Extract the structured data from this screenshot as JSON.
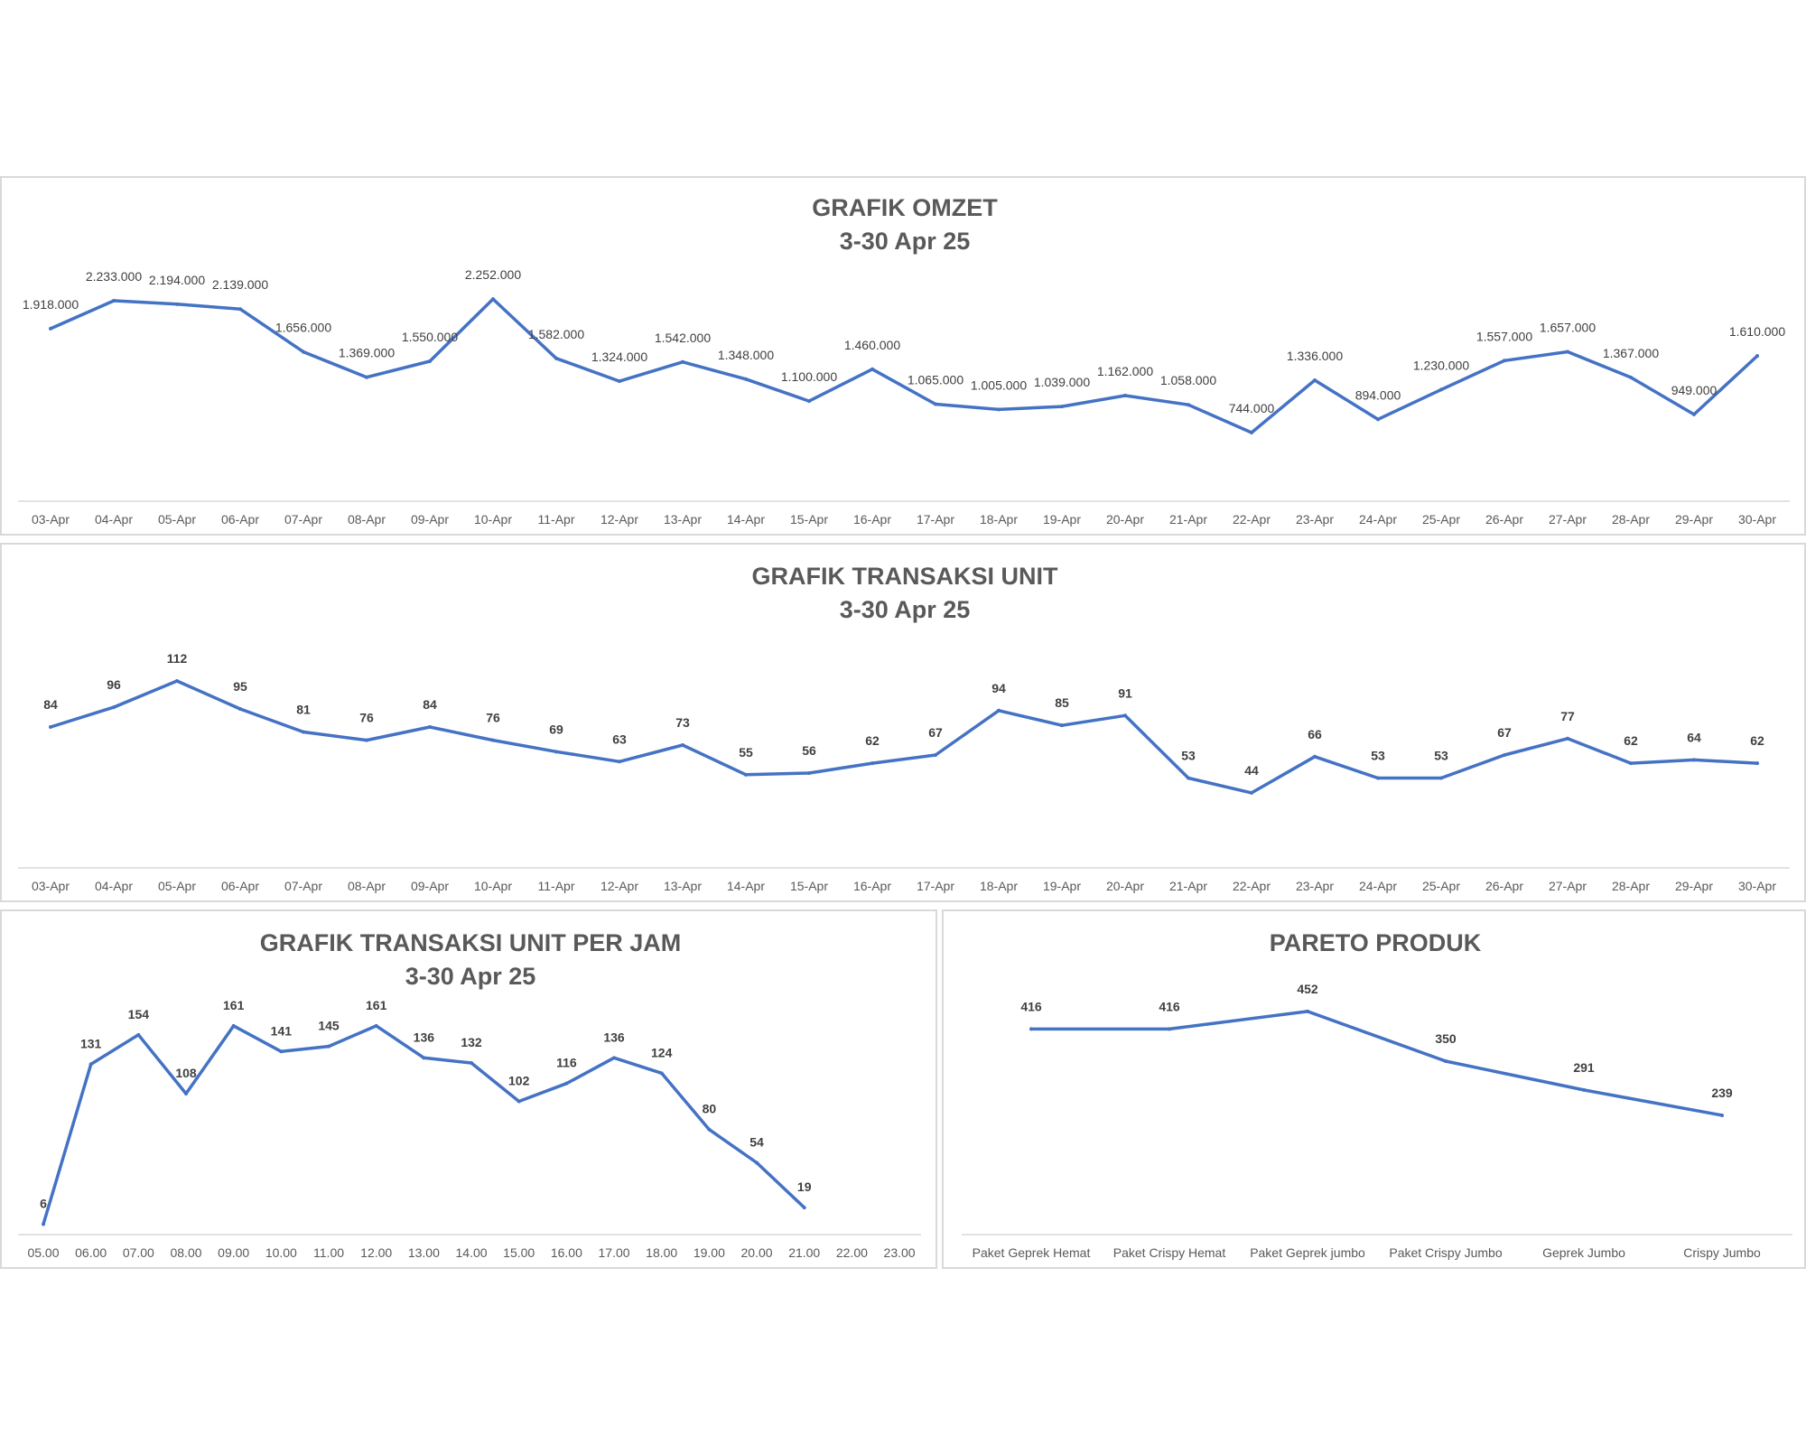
{
  "chart_data": [
    {
      "id": "omzet",
      "type": "line",
      "title": "GRAFIK OMZET",
      "subtitle": "3-30 Apr 25",
      "color": "#4472c4",
      "label_style": "normal",
      "categories": [
        "03-Apr",
        "04-Apr",
        "05-Apr",
        "06-Apr",
        "07-Apr",
        "08-Apr",
        "09-Apr",
        "10-Apr",
        "11-Apr",
        "12-Apr",
        "13-Apr",
        "14-Apr",
        "15-Apr",
        "16-Apr",
        "17-Apr",
        "18-Apr",
        "19-Apr",
        "20-Apr",
        "21-Apr",
        "22-Apr",
        "23-Apr",
        "24-Apr",
        "25-Apr",
        "26-Apr",
        "27-Apr",
        "28-Apr",
        "29-Apr",
        "30-Apr"
      ],
      "values": [
        1918000,
        2233000,
        2194000,
        2139000,
        1656000,
        1369000,
        1550000,
        2252000,
        1582000,
        1324000,
        1542000,
        1348000,
        1100000,
        1460000,
        1065000,
        1005000,
        1039000,
        1162000,
        1058000,
        744000,
        1336000,
        894000,
        1230000,
        1557000,
        1657000,
        1367000,
        949000,
        1610000
      ],
      "data_labels": [
        "1.918.000",
        "2.233.000",
        "2.194.000",
        "2.139.000",
        "1.656.000",
        "1.369.000",
        "1.550.000",
        "2.252.000",
        "1.582.000",
        "1.324.000",
        "1.542.000",
        "1.348.000",
        "1.100.000",
        "1.460.000",
        "1.065.000",
        "1.005.000",
        "1.039.000",
        "1.162.000",
        "1.058.000",
        "744.000",
        "1.336.000",
        "894.000",
        "1.230.000",
        "1.557.000",
        "1.657.000",
        "1.367.000",
        "949.000",
        "1.610.000"
      ],
      "ylim": [
        0,
        2600000
      ],
      "grid": false,
      "legend": "none"
    },
    {
      "id": "transaksi",
      "type": "line",
      "title": "GRAFIK TRANSAKSI UNIT",
      "subtitle": "3-30 Apr 25",
      "color": "#4472c4",
      "label_style": "bold",
      "categories": [
        "03-Apr",
        "04-Apr",
        "05-Apr",
        "06-Apr",
        "07-Apr",
        "08-Apr",
        "09-Apr",
        "10-Apr",
        "11-Apr",
        "12-Apr",
        "13-Apr",
        "14-Apr",
        "15-Apr",
        "16-Apr",
        "17-Apr",
        "18-Apr",
        "19-Apr",
        "20-Apr",
        "21-Apr",
        "22-Apr",
        "23-Apr",
        "24-Apr",
        "25-Apr",
        "26-Apr",
        "27-Apr",
        "28-Apr",
        "29-Apr",
        "30-Apr"
      ],
      "values": [
        84,
        96,
        112,
        95,
        81,
        76,
        84,
        76,
        69,
        63,
        73,
        55,
        56,
        62,
        67,
        94,
        85,
        91,
        53,
        44,
        66,
        53,
        53,
        67,
        77,
        62,
        64,
        62
      ],
      "data_labels": [
        "84",
        "96",
        "112",
        "95",
        "81",
        "76",
        "84",
        "76",
        "69",
        "63",
        "73",
        "55",
        "56",
        "62",
        "67",
        "94",
        "85",
        "91",
        "53",
        "44",
        "66",
        "53",
        "53",
        "67",
        "77",
        "62",
        "64",
        "62"
      ],
      "ylim": [
        0,
        140
      ],
      "grid": false,
      "legend": "none"
    },
    {
      "id": "perjam",
      "type": "line",
      "title": "GRAFIK TRANSAKSI UNIT PER JAM",
      "subtitle": "3-30 Apr 25",
      "color": "#4472c4",
      "label_style": "bold",
      "categories": [
        "05.00",
        "06.00",
        "07.00",
        "08.00",
        "09.00",
        "10.00",
        "11.00",
        "12.00",
        "13.00",
        "14.00",
        "15.00",
        "16.00",
        "17.00",
        "18.00",
        "19.00",
        "20.00",
        "21.00",
        "22.00",
        "23.00"
      ],
      "values": [
        6,
        131,
        154,
        108,
        161,
        141,
        145,
        161,
        136,
        132,
        102,
        116,
        136,
        124,
        80,
        54,
        19,
        null,
        null
      ],
      "data_labels": [
        "6",
        "131",
        "154",
        "108",
        "161",
        "141",
        "145",
        "161",
        "136",
        "132",
        "102",
        "116",
        "136",
        "124",
        "80",
        "54",
        "19",
        "",
        ""
      ],
      "ylim": [
        0,
        180
      ],
      "grid": false,
      "legend": "none"
    },
    {
      "id": "pareto",
      "type": "line",
      "title": "PARETO PRODUK",
      "subtitle": "",
      "color": "#4472c4",
      "label_style": "bold",
      "categories": [
        "Paket Geprek Hemat",
        "Paket Crispy Hemat",
        "Paket Geprek jumbo",
        "Paket Crispy Jumbo",
        "Geprek Jumbo",
        "Crispy Jumbo"
      ],
      "values": [
        416,
        416,
        452,
        350,
        291,
        239
      ],
      "data_labels": [
        "416",
        "416",
        "452",
        "350",
        "291",
        "239"
      ],
      "ylim": [
        0,
        500
      ],
      "grid": false,
      "legend": "none"
    }
  ]
}
